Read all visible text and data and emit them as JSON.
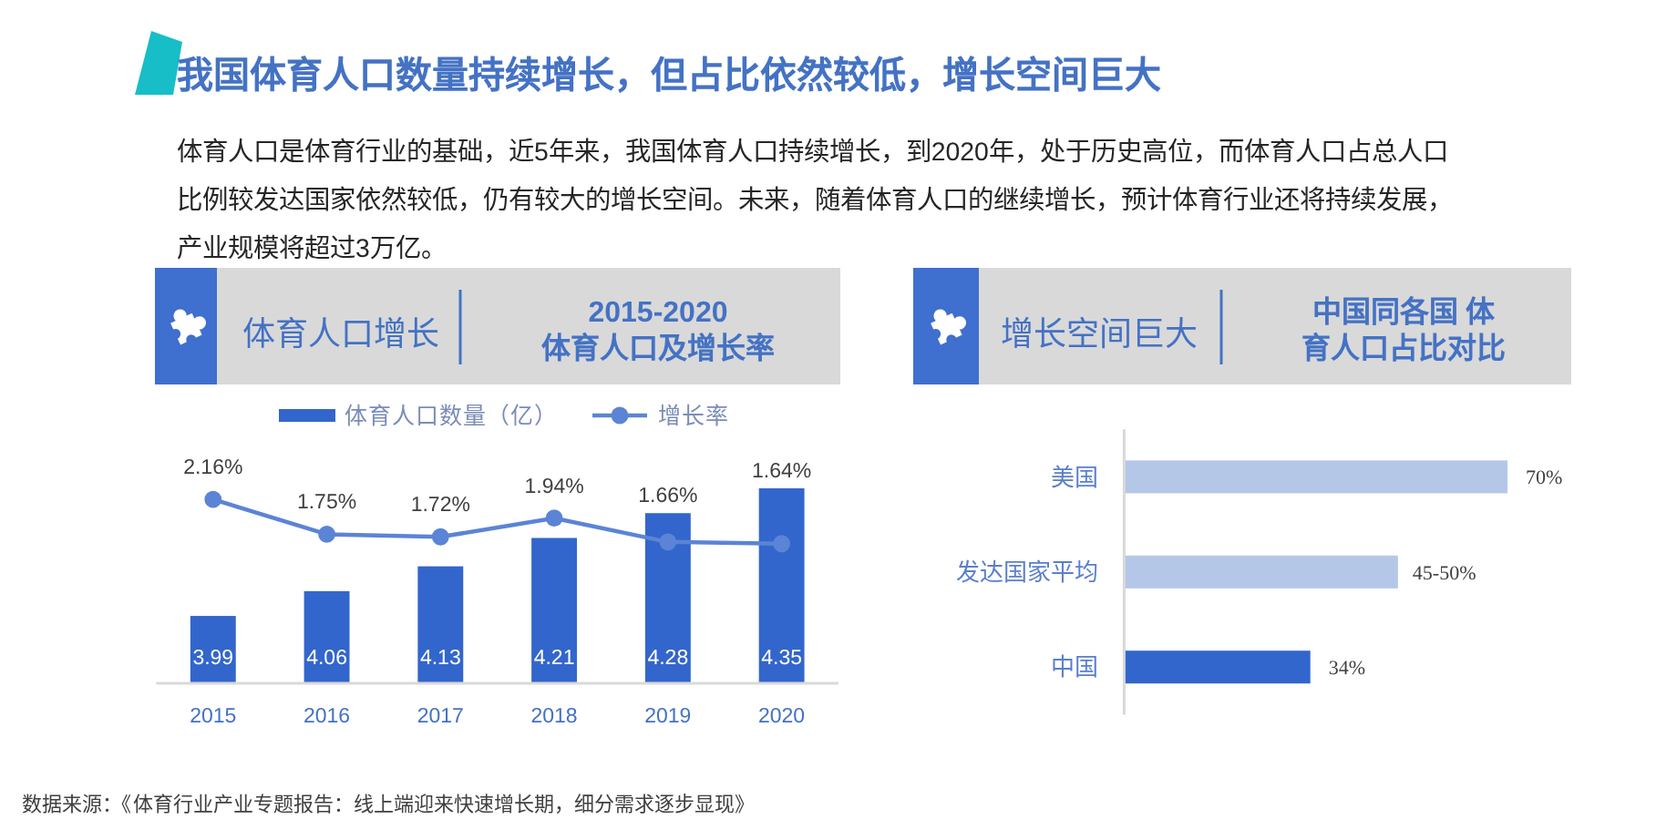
{
  "chart_data": [
    {
      "type": "other",
      "title": "我国体育人口数量持续增长，但占比依然较低，增长空间巨大",
      "annotations": [
        "体育人口是体育行业的基础，近5年来，我国体育人口持续增长，到2020年，处于历史高位，而体育人口占总人口比例较发达国家依然较低，仍有较大的增长空间。未来，随着体育人口的继续增长，预计体育行业还将持续发展，产业规模将超过3万亿。",
        "数据来源：《体育行业产业专题报告：线上端迎来快速增长期，细分需求逐步显现》"
      ]
    },
    {
      "type": "bar",
      "title": "体育人口增长",
      "subtitle": "2015-2020\n体育人口及增长率",
      "categories": [
        "2015",
        "2016",
        "2017",
        "2018",
        "2019",
        "2020"
      ],
      "series": [
        {
          "name": "体育人口数量（亿）",
          "type": "bar",
          "color": "#3366cc",
          "values": [
            3.99,
            4.06,
            4.13,
            4.21,
            4.28,
            4.35
          ],
          "value_labels": [
            "3.99",
            "4.06",
            "4.13",
            "4.21",
            "4.28",
            "4.35"
          ]
        },
        {
          "name": "增长率",
          "type": "line",
          "axis": "y2",
          "color": "#5b84d6",
          "values": [
            2.16,
            1.75,
            1.72,
            1.94,
            1.66,
            1.64
          ],
          "value_labels": [
            "2.16%",
            "1.75%",
            "1.72%",
            "1.94%",
            "1.66%",
            "1.64%"
          ]
        }
      ],
      "ylim": [
        3.8,
        4.35
      ],
      "y2lim": [
        0,
        2.29
      ],
      "marker": "circle",
      "legend": "top",
      "tick_labels": "x"
    },
    {
      "type": "bar",
      "orientation": "horizontal",
      "title": "增长空间巨大",
      "subtitle": "中国同各国 体育人口占比对比",
      "categories": [
        "美国",
        "发达国家平均",
        "中国"
      ],
      "values": [
        70,
        50,
        34
      ],
      "colors": [
        "#b4c7e7",
        "#b4c7e7",
        "#3366cc"
      ],
      "value_labels": [
        "70%",
        null,
        "34%"
      ],
      "annotations": [
        {
          "text": "45-50%",
          "x": 50,
          "y": "发达国家平均"
        }
      ],
      "xlim": [
        0,
        70
      ],
      "tick_labels": "y"
    }
  ]
}
